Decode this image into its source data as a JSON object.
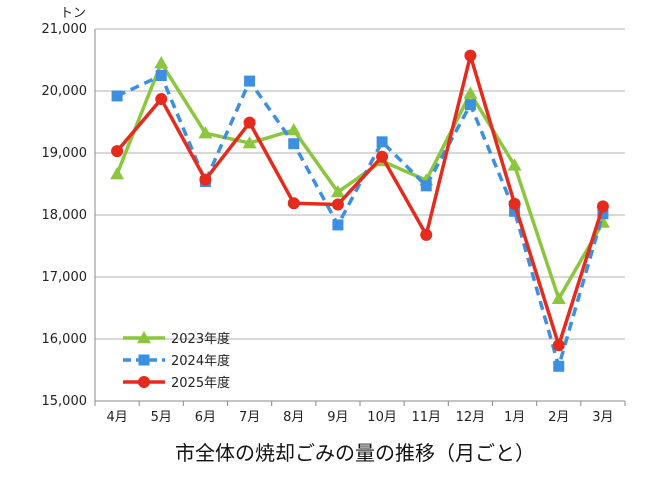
{
  "chart_data": {
    "type": "line",
    "title": "市全体の焼却ごみの量の推移（月ごと）",
    "ylabel": "トン",
    "xlabel": "",
    "ylim": [
      15000,
      21000
    ],
    "yticks": [
      15000,
      16000,
      17000,
      18000,
      19000,
      20000,
      21000
    ],
    "ytick_labels": [
      "15,000",
      "16,000",
      "17,000",
      "18,000",
      "19,000",
      "20,000",
      "21,000"
    ],
    "categories": [
      "4月",
      "5月",
      "6月",
      "7月",
      "8月",
      "9月",
      "10月",
      "11月",
      "12月",
      "1月",
      "2月",
      "3月"
    ],
    "grid": true,
    "legend_position": "bottom-left",
    "series": [
      {
        "name": "2023年度",
        "color": "#8cc63f",
        "marker": "triangle",
        "dash": "solid",
        "values": [
          18660,
          20450,
          19320,
          19160,
          19370,
          18370,
          18870,
          18560,
          19960,
          18800,
          16650,
          17880
        ]
      },
      {
        "name": "2024年度",
        "color": "#3d8fe0",
        "marker": "square",
        "dash": "dashed",
        "values": [
          19920,
          20250,
          18540,
          20160,
          19150,
          17840,
          19180,
          18470,
          19780,
          18060,
          15560,
          18020
        ]
      },
      {
        "name": "2025年度",
        "color": "#e52b1d",
        "marker": "circle",
        "dash": "solid",
        "values": [
          19030,
          19870,
          18570,
          19490,
          18190,
          18170,
          18940,
          17680,
          20570,
          18180,
          15900,
          18140
        ]
      }
    ]
  }
}
